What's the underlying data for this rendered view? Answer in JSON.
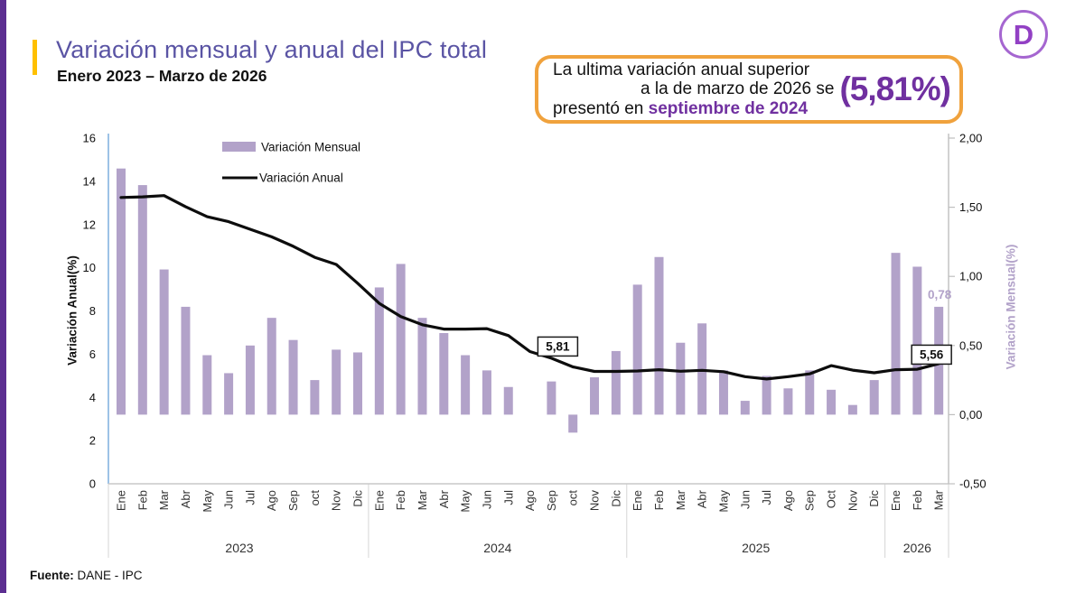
{
  "page": {
    "title": "Variación mensual y anual del IPC total",
    "subtitle": "Enero 2023 – Marzo de 2026",
    "logo_letter": "D"
  },
  "callout": {
    "line1": "La ultima variación anual superior",
    "line2": "a la de marzo de 2026 se",
    "line3_prefix": "presentó en ",
    "line3_highlight": "septiembre de 2024",
    "big_value": "(5,81%)"
  },
  "footer": {
    "label": "Fuente:",
    "value": "DANE - IPC"
  },
  "colors": {
    "bar": "#b2a2c9",
    "line": "#0d0d0d",
    "accent_purple": "#7030a0",
    "title_purple": "#5a54a4",
    "callout_border": "#f0a23d",
    "left_axis_line": "#9dc3e6",
    "stripe_purple": "#5c2e91",
    "accent_orange": "#ffc000"
  },
  "chart_data": {
    "type": "bar+line combo",
    "title": "",
    "legend": [
      {
        "label": "Variación Mensual",
        "marker": "bar-swatch"
      },
      {
        "label": "Variación Anual",
        "marker": "line-swatch"
      }
    ],
    "legend_position": "top-left-inside",
    "grid": false,
    "left_axis": {
      "label": "Variación Anual(%)",
      "min": 0,
      "max": 16,
      "step": 2
    },
    "right_axis": {
      "label": "Variación Mensual(%)",
      "min": -0.5,
      "max": 2.0,
      "step": 0.5
    },
    "groups": [
      {
        "year": "2023",
        "months": [
          "Ene",
          "Feb",
          "Mar",
          "Abr",
          "May",
          "Jun",
          "Jul",
          "Ago",
          "Sep",
          "oct",
          "Nov",
          "Dic"
        ]
      },
      {
        "year": "2024",
        "months": [
          "Ene",
          "Feb",
          "Mar",
          "Abr",
          "May",
          "Jun",
          "Jul",
          "Ago",
          "Sep",
          "oct",
          "Nov",
          "Dic"
        ]
      },
      {
        "year": "2025",
        "months": [
          "Ene",
          "Feb",
          "Mar",
          "Abr",
          "May",
          "Jun",
          "Jul",
          "Ago",
          "Sep",
          "Oct",
          "Nov",
          "Dic"
        ]
      },
      {
        "year": "2026",
        "months": [
          "Ene",
          "Feb",
          "Mar"
        ]
      }
    ],
    "series": [
      {
        "name": "Variación Mensual",
        "type": "bar",
        "axis": "right",
        "values": [
          1.78,
          1.66,
          1.05,
          0.78,
          0.43,
          0.3,
          0.5,
          0.7,
          0.54,
          0.25,
          0.47,
          0.45,
          0.92,
          1.09,
          0.7,
          0.59,
          0.43,
          0.32,
          0.2,
          0.0,
          0.24,
          -0.13,
          0.27,
          0.46,
          0.94,
          1.14,
          0.52,
          0.66,
          0.32,
          0.1,
          0.28,
          0.19,
          0.32,
          0.18,
          0.07,
          0.25,
          1.17,
          1.07,
          0.78
        ]
      },
      {
        "name": "Variación Anual",
        "type": "line",
        "axis": "left",
        "values": [
          13.25,
          13.28,
          13.34,
          12.82,
          12.36,
          12.13,
          11.78,
          11.43,
          10.99,
          10.48,
          10.15,
          9.28,
          8.35,
          7.74,
          7.36,
          7.16,
          7.16,
          7.18,
          6.86,
          6.12,
          5.81,
          5.41,
          5.2,
          5.2,
          5.22,
          5.28,
          5.21,
          5.25,
          5.19,
          4.96,
          4.85,
          4.96,
          5.09,
          5.47,
          5.26,
          5.14,
          5.28,
          5.3,
          5.56
        ]
      }
    ],
    "annotations": [
      {
        "text": "5,81",
        "month_index": 20,
        "axis": "left",
        "value": 5.81,
        "boxed": true
      },
      {
        "text": "5,56",
        "month_index": 38,
        "axis": "left",
        "value": 5.56,
        "boxed": true
      },
      {
        "text": "0,78",
        "month_index": 38,
        "axis": "right",
        "value": 0.78,
        "boxed": false
      }
    ]
  }
}
